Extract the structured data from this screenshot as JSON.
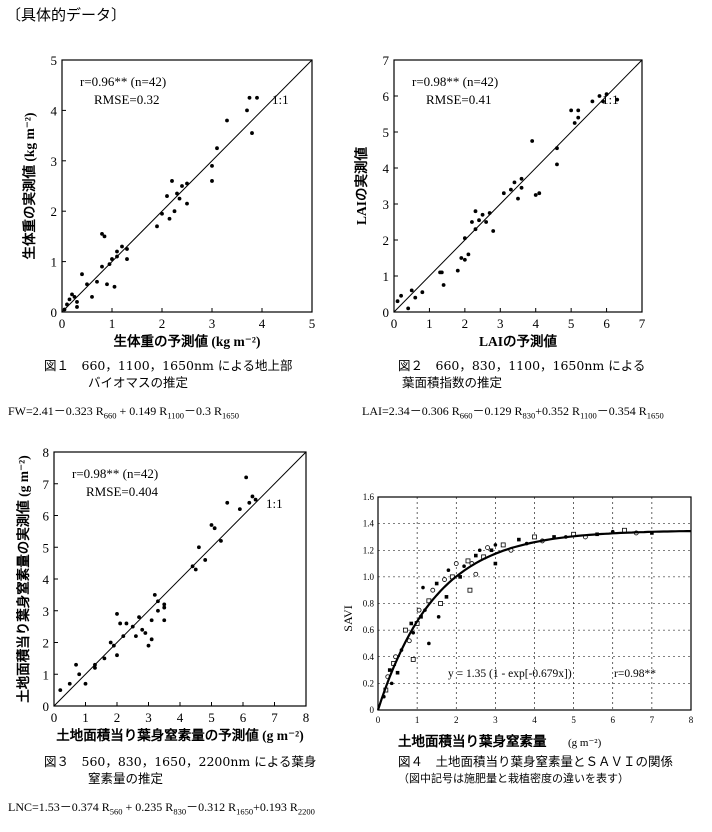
{
  "heading": "〔具体的データ〕",
  "figures": [
    {
      "caption_l1": "図１　660，1100，1650nm による地上部",
      "caption_l2": "バイオマスの推定",
      "formula": [
        "FW=2.41－0.323 R",
        "660",
        " + 0.149 R",
        "1100",
        "－0.3 R",
        "1650"
      ]
    },
    {
      "caption_l1": "図２　660，830，1100，1650nm による",
      "caption_l2": "葉面積指数の推定",
      "formula": [
        "LAI=2.34－0.306 R",
        "660",
        "－0.129 R",
        "830",
        "+0.352 R",
        "1100",
        "－0.354 R",
        "1650"
      ]
    },
    {
      "caption_l1": "図３　560，830，1650，2200nm による葉身",
      "caption_l2": "窒素量の推定",
      "formula": [
        "LNC=1.53－0.374 R",
        "560",
        " + 0.235 R",
        "830",
        "－0.312 R",
        "1650",
        "+0.193 R",
        "2200"
      ]
    },
    {
      "caption_l1": "図４　土地面積当り葉身窒素量とＳＡＶＩの関係",
      "caption_l2": "（図中記号は施肥量と栽植密度の違いを表す）"
    }
  ],
  "chart_data": [
    {
      "type": "scatter",
      "xlabel": "生体重の予測値 (kg m⁻²)",
      "ylabel": "生体重の実測値 (kg m⁻²)",
      "xlim": [
        0,
        5
      ],
      "ylim": [
        0,
        5
      ],
      "ticks": [
        0,
        1,
        2,
        3,
        4,
        5
      ],
      "annotations": {
        "r": "r=0.96** (n=42)",
        "rmse": "RMSE=0.32",
        "line": "1:1"
      },
      "points": [
        [
          0.05,
          0.05
        ],
        [
          0.1,
          0.15
        ],
        [
          0.15,
          0.25
        ],
        [
          0.2,
          0.35
        ],
        [
          0.25,
          0.3
        ],
        [
          0.3,
          0.2
        ],
        [
          0.3,
          0.1
        ],
        [
          0.4,
          0.75
        ],
        [
          0.5,
          0.55
        ],
        [
          0.6,
          0.3
        ],
        [
          0.7,
          0.6
        ],
        [
          0.8,
          0.9
        ],
        [
          0.8,
          1.55
        ],
        [
          0.85,
          1.5
        ],
        [
          0.9,
          0.55
        ],
        [
          1.0,
          1.05
        ],
        [
          1.05,
          0.5
        ],
        [
          1.1,
          1.2
        ],
        [
          1.2,
          1.3
        ],
        [
          1.3,
          1.05
        ],
        [
          1.3,
          1.25
        ],
        [
          1.9,
          1.7
        ],
        [
          2.0,
          1.95
        ],
        [
          2.1,
          2.3
        ],
        [
          2.15,
          1.85
        ],
        [
          2.2,
          2.6
        ],
        [
          2.25,
          2.0
        ],
        [
          2.3,
          2.35
        ],
        [
          2.35,
          2.25
        ],
        [
          2.4,
          2.5
        ],
        [
          2.5,
          2.55
        ],
        [
          2.5,
          2.15
        ],
        [
          3.0,
          2.9
        ],
        [
          3.0,
          2.6
        ],
        [
          3.1,
          3.25
        ],
        [
          3.3,
          3.8
        ],
        [
          3.7,
          4.0
        ],
        [
          3.75,
          4.25
        ],
        [
          3.8,
          3.55
        ],
        [
          3.9,
          4.25
        ],
        [
          0.95,
          0.95
        ],
        [
          1.1,
          1.1
        ]
      ]
    },
    {
      "type": "scatter",
      "xlabel": "LAIの予測値",
      "ylabel": "LAIの実測値",
      "xlim": [
        0,
        7
      ],
      "ylim": [
        0,
        7
      ],
      "ticks": [
        0,
        1,
        2,
        3,
        4,
        5,
        6,
        7
      ],
      "annotations": {
        "r": "r=0.98** (n=42)",
        "rmse": "RMSE=0.41",
        "line": "1:1"
      },
      "points": [
        [
          0.1,
          0.3
        ],
        [
          0.2,
          0.45
        ],
        [
          0.4,
          0.1
        ],
        [
          0.5,
          0.6
        ],
        [
          0.6,
          0.4
        ],
        [
          0.8,
          0.55
        ],
        [
          1.3,
          1.1
        ],
        [
          1.35,
          1.1
        ],
        [
          1.4,
          0.75
        ],
        [
          1.8,
          1.15
        ],
        [
          1.9,
          1.5
        ],
        [
          2.0,
          1.45
        ],
        [
          2.0,
          2.05
        ],
        [
          2.1,
          1.6
        ],
        [
          2.2,
          2.5
        ],
        [
          2.3,
          2.8
        ],
        [
          2.3,
          2.3
        ],
        [
          2.4,
          2.55
        ],
        [
          2.5,
          2.7
        ],
        [
          2.6,
          2.5
        ],
        [
          2.7,
          2.75
        ],
        [
          2.8,
          2.25
        ],
        [
          3.1,
          3.3
        ],
        [
          3.3,
          3.4
        ],
        [
          3.4,
          3.6
        ],
        [
          3.5,
          3.15
        ],
        [
          3.6,
          3.7
        ],
        [
          3.6,
          3.45
        ],
        [
          3.9,
          4.75
        ],
        [
          4.0,
          3.25
        ],
        [
          4.1,
          3.3
        ],
        [
          4.6,
          4.55
        ],
        [
          4.6,
          4.1
        ],
        [
          5.0,
          5.6
        ],
        [
          5.1,
          5.25
        ],
        [
          5.2,
          5.4
        ],
        [
          5.2,
          5.6
        ],
        [
          5.6,
          5.85
        ],
        [
          5.8,
          6.0
        ],
        [
          5.9,
          5.85
        ],
        [
          6.0,
          6.05
        ],
        [
          6.3,
          5.9
        ]
      ]
    },
    {
      "type": "scatter",
      "xlabel": "土地面積当り葉身窒素量の予測値 (g m⁻²)",
      "ylabel": "土地面積当り葉身窒素量の実測値 (g m⁻²)",
      "xlim": [
        0,
        8
      ],
      "ylim": [
        0,
        8
      ],
      "ticks": [
        0,
        1,
        2,
        3,
        4,
        5,
        6,
        7,
        8
      ],
      "annotations": {
        "r": "r=0.98** (n=42)",
        "rmse": "RMSE=0.404",
        "line": "1:1"
      },
      "points": [
        [
          0.2,
          0.5
        ],
        [
          0.5,
          0.7
        ],
        [
          0.7,
          1.3
        ],
        [
          0.8,
          1.0
        ],
        [
          1.0,
          0.7
        ],
        [
          1.3,
          1.2
        ],
        [
          1.3,
          1.3
        ],
        [
          1.6,
          1.5
        ],
        [
          1.8,
          2.0
        ],
        [
          1.9,
          1.9
        ],
        [
          2.0,
          2.9
        ],
        [
          2.0,
          1.6
        ],
        [
          2.1,
          2.6
        ],
        [
          2.2,
          2.2
        ],
        [
          2.3,
          2.6
        ],
        [
          2.5,
          2.5
        ],
        [
          2.6,
          2.2
        ],
        [
          2.7,
          2.8
        ],
        [
          2.8,
          2.4
        ],
        [
          2.9,
          2.3
        ],
        [
          3.0,
          1.9
        ],
        [
          3.1,
          2.1
        ],
        [
          3.1,
          2.7
        ],
        [
          3.2,
          3.5
        ],
        [
          3.3,
          3.0
        ],
        [
          3.3,
          3.3
        ],
        [
          3.5,
          3.2
        ],
        [
          3.5,
          3.1
        ],
        [
          3.5,
          2.7
        ],
        [
          4.4,
          4.4
        ],
        [
          4.5,
          4.3
        ],
        [
          4.6,
          5.0
        ],
        [
          4.8,
          4.6
        ],
        [
          5.0,
          5.7
        ],
        [
          5.1,
          5.6
        ],
        [
          5.3,
          5.2
        ],
        [
          5.5,
          6.4
        ],
        [
          5.9,
          6.2
        ],
        [
          6.1,
          7.2
        ],
        [
          6.2,
          6.4
        ],
        [
          6.3,
          6.6
        ],
        [
          6.4,
          6.5
        ]
      ]
    },
    {
      "type": "scatter",
      "xlabel": "土地面積当り葉身窒素量",
      "xunit": "(g m⁻²)",
      "ylabel": "SAVI",
      "xlim": [
        0,
        8
      ],
      "ylim": [
        0,
        1.6
      ],
      "xticks": [
        0,
        1,
        2,
        3,
        4,
        5,
        6,
        7,
        8
      ],
      "yticks": [
        "0",
        "0.2",
        "0.4",
        "0.6",
        "0.8",
        "1.0",
        "1.2",
        "1.4",
        "1.6"
      ],
      "fit": {
        "a": 1.35,
        "b": -0.679
      },
      "equation": "y = 1.35 (1 - exp[-0.679x])",
      "r": "r=0.98**",
      "points": [
        [
          0.15,
          0.1
        ],
        [
          0.2,
          0.15
        ],
        [
          0.25,
          0.25
        ],
        [
          0.3,
          0.3
        ],
        [
          0.35,
          0.2
        ],
        [
          0.4,
          0.35
        ],
        [
          0.45,
          0.4
        ],
        [
          0.5,
          0.28
        ],
        [
          0.6,
          0.45
        ],
        [
          0.7,
          0.6
        ],
        [
          0.8,
          0.52
        ],
        [
          0.85,
          0.65
        ],
        [
          0.9,
          0.58
        ],
        [
          1.0,
          0.65
        ],
        [
          1.05,
          0.75
        ],
        [
          1.1,
          0.7
        ],
        [
          1.2,
          0.75
        ],
        [
          1.3,
          0.82
        ],
        [
          1.4,
          0.9
        ],
        [
          1.5,
          0.95
        ],
        [
          1.55,
          0.7
        ],
        [
          1.6,
          0.8
        ],
        [
          1.7,
          0.98
        ],
        [
          1.75,
          0.85
        ],
        [
          1.8,
          1.05
        ],
        [
          1.9,
          1.0
        ],
        [
          2.0,
          1.1
        ],
        [
          2.1,
          1.0
        ],
        [
          2.2,
          1.08
        ],
        [
          2.3,
          1.12
        ],
        [
          2.4,
          1.1
        ],
        [
          2.5,
          1.16
        ],
        [
          2.6,
          1.2
        ],
        [
          2.7,
          1.15
        ],
        [
          2.8,
          1.22
        ],
        [
          2.9,
          1.2
        ],
        [
          3.0,
          1.24
        ],
        [
          3.2,
          1.24
        ],
        [
          3.4,
          1.2
        ],
        [
          3.6,
          1.28
        ],
        [
          3.8,
          1.25
        ],
        [
          4.0,
          1.3
        ],
        [
          4.2,
          1.27
        ],
        [
          4.5,
          1.3
        ],
        [
          4.8,
          1.3
        ],
        [
          5.0,
          1.32
        ],
        [
          5.3,
          1.3
        ],
        [
          5.6,
          1.32
        ],
        [
          6.0,
          1.34
        ],
        [
          6.3,
          1.35
        ],
        [
          6.6,
          1.33
        ],
        [
          7.0,
          1.33
        ],
        [
          1.3,
          0.5
        ],
        [
          0.9,
          0.38
        ],
        [
          2.5,
          1.02
        ],
        [
          3.0,
          1.1
        ],
        [
          1.15,
          0.92
        ],
        [
          2.35,
          0.9
        ]
      ]
    }
  ]
}
